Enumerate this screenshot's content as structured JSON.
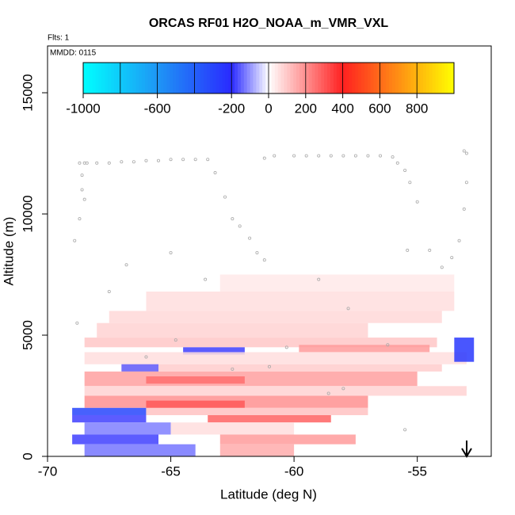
{
  "chart_data": {
    "type": "heatmap",
    "title": "ORCAS RF01 H2O_NOAA_m_VMR_VXL",
    "flights_label": "Flts: 1",
    "date_label": "MMDD: 0115",
    "x_label": "Latitude (deg N)",
    "y_label": "Altitude (m)",
    "xlim": [
      -70,
      -52
    ],
    "ylim": [
      0,
      16930
    ],
    "xticks": [
      -70,
      -65,
      -60,
      -55
    ],
    "yticks": [
      0,
      5000,
      10000,
      15000
    ],
    "colorbar": {
      "lim": [
        -1000,
        1000
      ],
      "ticks": [
        -1000,
        -600,
        -200,
        0,
        200,
        400,
        600,
        800
      ],
      "stops": [
        [
          -1000,
          "#00ffff"
        ],
        [
          -600,
          "#1e96f5"
        ],
        [
          -200,
          "#2a2aff"
        ],
        [
          0,
          "#ffffff"
        ],
        [
          400,
          "#ff2020"
        ],
        [
          600,
          "#ff6a1a"
        ],
        [
          1000,
          "#ffff00"
        ]
      ]
    },
    "cells": {
      "lat": [
        [
          -63,
          -53.5
        ],
        [
          -66,
          -53.5
        ],
        [
          -67.5,
          -54
        ],
        [
          -68,
          -57
        ],
        [
          -68.5,
          -54.2
        ],
        [
          -64.5,
          -62
        ],
        [
          -59.8,
          -54.5
        ],
        [
          -68.5,
          -53
        ],
        [
          -67,
          -54
        ],
        [
          -67,
          -65.5
        ],
        [
          -68.5,
          -55
        ],
        [
          -66,
          -62
        ],
        [
          -68.5,
          -53
        ],
        [
          -68.5,
          -57
        ],
        [
          -66,
          -62
        ],
        [
          -69,
          -66
        ],
        [
          -66,
          -57
        ],
        [
          -63.5,
          -58.5
        ],
        [
          -69,
          -66
        ],
        [
          -68.5,
          -65
        ],
        [
          -65,
          -60
        ],
        [
          -63,
          -57.5
        ],
        [
          -69,
          -65.5
        ],
        [
          -68.5,
          -64
        ],
        [
          -63,
          -60
        ],
        [
          -53.5,
          -52.7
        ]
      ],
      "alt": [
        [
          6800,
          7500
        ],
        [
          6000,
          6800
        ],
        [
          5500,
          6000
        ],
        [
          4900,
          5500
        ],
        [
          4500,
          4900
        ],
        [
          4200,
          4500
        ],
        [
          4300,
          4600
        ],
        [
          3800,
          4300
        ],
        [
          3500,
          3800
        ],
        [
          3500,
          3800
        ],
        [
          2900,
          3500
        ],
        [
          3000,
          3300
        ],
        [
          2500,
          2900
        ],
        [
          2000,
          2500
        ],
        [
          2000,
          2300
        ],
        [
          1700,
          2000
        ],
        [
          1700,
          2000
        ],
        [
          1400,
          1700
        ],
        [
          1400,
          1700
        ],
        [
          900,
          1400
        ],
        [
          900,
          1400
        ],
        [
          500,
          900
        ],
        [
          500,
          900
        ],
        [
          0,
          500
        ],
        [
          0,
          500
        ],
        [
          3900,
          4900
        ]
      ],
      "values": [
        40,
        60,
        70,
        80,
        100,
        -180,
        180,
        60,
        90,
        -150,
        170,
        260,
        80,
        200,
        300,
        -300,
        110,
        280,
        -180,
        -120,
        60,
        180,
        -180,
        -130,
        150,
        -250
      ]
    },
    "track": {
      "lat": [
        -68.9,
        -68.8,
        -68.7,
        -68.6,
        -68.7,
        -68.6,
        -68.5,
        -68.5,
        -68.4,
        -68.0,
        -67.5,
        -67.0,
        -66.5,
        -66.0,
        -65.5,
        -65.0,
        -64.5,
        -64.0,
        -63.5,
        -63.2,
        -62.8,
        -62.5,
        -62.2,
        -61.8,
        -61.5,
        -61.2,
        -60.8,
        -60.0,
        -59.5,
        -59.0,
        -58.5,
        -58.0,
        -57.5,
        -57.0,
        -56.5,
        -56.0,
        -55.8,
        -55.5,
        -55.3,
        -55.0,
        -54.5,
        -54.0,
        -53.6,
        -53.3,
        -53.1,
        -53.0,
        -53.0,
        -53.1,
        -66.8,
        -65.0,
        -63.6,
        -61.2,
        -59.0,
        -57.8,
        -55.4,
        -67.5,
        -64.8,
        -62.5,
        -60.3,
        -58.0,
        -56.2,
        -66.0,
        -61.0,
        -58.6,
        -55.5
      ],
      "alt": [
        8900,
        5500,
        9800,
        11600,
        12100,
        11000,
        10600,
        12100,
        12100,
        12100,
        12100,
        12150,
        12150,
        12200,
        12200,
        12250,
        12250,
        12250,
        12250,
        11700,
        10700,
        9800,
        9500,
        9000,
        8400,
        12300,
        12400,
        12400,
        12400,
        12400,
        12400,
        12400,
        12400,
        12400,
        12400,
        12350,
        12100,
        11800,
        11300,
        10500,
        8500,
        7800,
        8200,
        8900,
        10200,
        11300,
        12500,
        12600,
        7900,
        8400,
        7300,
        8100,
        7300,
        6100,
        8500,
        6800,
        4800,
        3600,
        4500,
        2800,
        4600,
        4100,
        3700,
        2600,
        1100
      ]
    }
  }
}
